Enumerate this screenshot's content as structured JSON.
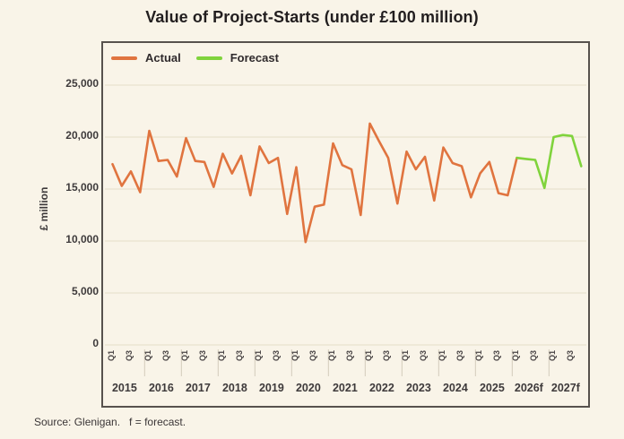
{
  "title": "Value of Project-Starts (under £100 million)",
  "legend": {
    "actual_label": "Actual",
    "forecast_label": "Forecast"
  },
  "y_axis_title": "£ million",
  "source_note": "Source: Glenigan.   f = forecast.",
  "colors": {
    "actual": "#e0743f",
    "forecast": "#80d33c",
    "background": "#f9f4e8",
    "border": "#57524d",
    "gridline": "#e9e2cf",
    "year_tick": "#d9d2c2",
    "text": "#3e3a3b"
  },
  "chart_data": {
    "type": "line",
    "title": "Value of Project-Starts (under £100 million)",
    "ylabel": "£ million",
    "ylim": [
      0,
      25000
    ],
    "y_ticks": [
      0,
      5000,
      10000,
      15000,
      20000,
      25000
    ],
    "grid": true,
    "legend_position": "top-left",
    "years": [
      "2015",
      "2016",
      "2017",
      "2018",
      "2019",
      "2020",
      "2021",
      "2022",
      "2023",
      "2024",
      "2025",
      "2026f",
      "2027f"
    ],
    "quarter_tick_labels": [
      "Q1",
      "Q3"
    ],
    "quarter_tick_offsets": [
      0,
      2
    ],
    "series": [
      {
        "name": "Actual",
        "color": "#e0743f",
        "start_quarter_index": 0,
        "values": [
          17400,
          15300,
          16700,
          14700,
          20600,
          17700,
          17800,
          16200,
          19900,
          17700,
          17600,
          15200,
          18400,
          16500,
          18200,
          14400,
          19100,
          17500,
          18000,
          12600,
          17100,
          9900,
          13300,
          13500,
          19400,
          17300,
          16900,
          12500,
          21300,
          19600,
          18000,
          13600,
          18600,
          16900,
          18100,
          13900,
          19000,
          17500,
          17200,
          14200,
          16500,
          17600,
          14600,
          14400
        ]
      },
      {
        "name": "Forecast",
        "color": "#80d33c",
        "start_quarter_index": 44,
        "values": [
          18000,
          17900,
          17800,
          15100,
          20000,
          20200,
          20100,
          17200
        ]
      }
    ]
  }
}
